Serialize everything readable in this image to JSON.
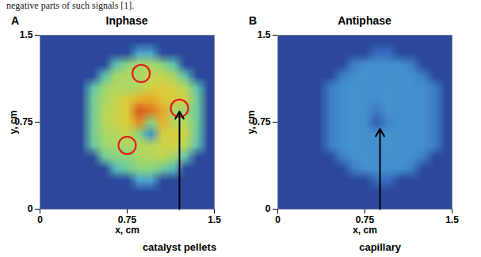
{
  "text_above": "negative parts of such signals [1].",
  "chart_data": [
    {
      "type": "heatmap",
      "label": "A",
      "title": "Inphase",
      "xlabel": "x, cm",
      "ylabel": "y, cm",
      "xlim": [
        0,
        1.5
      ],
      "ylim": [
        0,
        1.5
      ],
      "xticks": [
        0,
        0.75,
        1.5
      ],
      "yticks": [
        0,
        0.75,
        1.5
      ],
      "zlim": [
        0,
        1
      ],
      "cells": [
        [
          0.12,
          0.12,
          0.12,
          0.12,
          0.12,
          0.12,
          0.12,
          0.12,
          0.12,
          0.12,
          0.12,
          0.12,
          0.12,
          0.12,
          0.12
        ],
        [
          0.12,
          0.12,
          0.12,
          0.12,
          0.12,
          0.12,
          0.12,
          0.12,
          0.35,
          0.35,
          0.12,
          0.12,
          0.12,
          0.12,
          0.12
        ],
        [
          0.12,
          0.12,
          0.12,
          0.12,
          0.12,
          0.12,
          0.45,
          0.55,
          0.6,
          0.6,
          0.55,
          0.45,
          0.12,
          0.12,
          0.12
        ],
        [
          0.12,
          0.12,
          0.12,
          0.12,
          0.12,
          0.45,
          0.6,
          0.62,
          0.6,
          0.65,
          0.65,
          0.6,
          0.45,
          0.12,
          0.12
        ],
        [
          0.12,
          0.12,
          0.12,
          0.12,
          0.45,
          0.58,
          0.62,
          0.6,
          0.62,
          0.68,
          0.7,
          0.68,
          0.62,
          0.45,
          0.12
        ],
        [
          0.12,
          0.12,
          0.12,
          0.12,
          0.5,
          0.6,
          0.65,
          0.7,
          0.78,
          0.8,
          0.72,
          0.7,
          0.68,
          0.5,
          0.12
        ],
        [
          0.12,
          0.12,
          0.12,
          0.12,
          0.5,
          0.62,
          0.66,
          0.72,
          0.92,
          0.88,
          0.8,
          0.6,
          0.58,
          0.5,
          0.12
        ],
        [
          0.12,
          0.12,
          0.12,
          0.12,
          0.5,
          0.62,
          0.66,
          0.7,
          0.85,
          0.55,
          0.78,
          0.62,
          0.62,
          0.5,
          0.12
        ],
        [
          0.12,
          0.12,
          0.12,
          0.12,
          0.5,
          0.6,
          0.62,
          0.66,
          0.55,
          0.3,
          0.68,
          0.7,
          0.66,
          0.48,
          0.12
        ],
        [
          0.12,
          0.12,
          0.12,
          0.12,
          0.48,
          0.58,
          0.6,
          0.6,
          0.62,
          0.62,
          0.66,
          0.68,
          0.62,
          0.45,
          0.12
        ],
        [
          0.12,
          0.12,
          0.12,
          0.12,
          0.12,
          0.5,
          0.55,
          0.55,
          0.6,
          0.62,
          0.64,
          0.58,
          0.45,
          0.12,
          0.12
        ],
        [
          0.12,
          0.12,
          0.12,
          0.12,
          0.12,
          0.12,
          0.42,
          0.5,
          0.55,
          0.55,
          0.5,
          0.42,
          0.12,
          0.12,
          0.12
        ],
        [
          0.12,
          0.12,
          0.12,
          0.12,
          0.12,
          0.12,
          0.12,
          0.12,
          0.35,
          0.35,
          0.12,
          0.12,
          0.12,
          0.12,
          0.12
        ],
        [
          0.12,
          0.12,
          0.12,
          0.12,
          0.12,
          0.12,
          0.12,
          0.12,
          0.12,
          0.12,
          0.12,
          0.12,
          0.12,
          0.12,
          0.12
        ],
        [
          0.12,
          0.12,
          0.12,
          0.12,
          0.12,
          0.12,
          0.12,
          0.12,
          0.12,
          0.12,
          0.12,
          0.12,
          0.12,
          0.12,
          0.12
        ]
      ],
      "marker": "circle",
      "markers": [
        {
          "x": 0.87,
          "y": 1.17
        },
        {
          "x": 1.2,
          "y": 0.87
        },
        {
          "x": 0.75,
          "y": 0.55
        }
      ],
      "annotations": [
        {
          "text": "catalyst pellets",
          "x": 1.2,
          "y": 0.87
        }
      ]
    },
    {
      "type": "heatmap",
      "label": "B",
      "title": "Antiphase",
      "xlabel": "x, cm",
      "ylabel": "y, cm",
      "xlim": [
        0,
        1.5
      ],
      "ylim": [
        0,
        1.5
      ],
      "xticks": [
        0,
        0.75,
        1.5
      ],
      "yticks": [
        0,
        0.75,
        1.5
      ],
      "zlim": [
        0,
        1
      ],
      "cells": [
        [
          0.12,
          0.12,
          0.12,
          0.12,
          0.12,
          0.12,
          0.12,
          0.12,
          0.12,
          0.12,
          0.12,
          0.12,
          0.12,
          0.12,
          0.12
        ],
        [
          0.12,
          0.12,
          0.12,
          0.12,
          0.12,
          0.12,
          0.12,
          0.12,
          0.22,
          0.22,
          0.12,
          0.12,
          0.12,
          0.12,
          0.12
        ],
        [
          0.12,
          0.12,
          0.12,
          0.12,
          0.12,
          0.12,
          0.26,
          0.3,
          0.3,
          0.3,
          0.3,
          0.26,
          0.12,
          0.12,
          0.12
        ],
        [
          0.12,
          0.12,
          0.12,
          0.12,
          0.12,
          0.26,
          0.3,
          0.31,
          0.3,
          0.3,
          0.31,
          0.3,
          0.26,
          0.12,
          0.12
        ],
        [
          0.12,
          0.12,
          0.12,
          0.12,
          0.26,
          0.3,
          0.31,
          0.3,
          0.3,
          0.31,
          0.3,
          0.3,
          0.3,
          0.26,
          0.12
        ],
        [
          0.12,
          0.12,
          0.12,
          0.12,
          0.26,
          0.3,
          0.31,
          0.3,
          0.3,
          0.31,
          0.3,
          0.3,
          0.3,
          0.26,
          0.12
        ],
        [
          0.12,
          0.12,
          0.12,
          0.12,
          0.26,
          0.3,
          0.31,
          0.3,
          0.25,
          0.31,
          0.3,
          0.3,
          0.3,
          0.26,
          0.12
        ],
        [
          0.12,
          0.12,
          0.12,
          0.12,
          0.26,
          0.3,
          0.31,
          0.3,
          0.18,
          0.28,
          0.3,
          0.3,
          0.3,
          0.26,
          0.12
        ],
        [
          0.12,
          0.12,
          0.12,
          0.12,
          0.26,
          0.3,
          0.31,
          0.3,
          0.3,
          0.31,
          0.3,
          0.3,
          0.3,
          0.26,
          0.12
        ],
        [
          0.12,
          0.12,
          0.12,
          0.12,
          0.26,
          0.3,
          0.31,
          0.3,
          0.3,
          0.31,
          0.3,
          0.3,
          0.3,
          0.26,
          0.12
        ],
        [
          0.12,
          0.12,
          0.12,
          0.12,
          0.12,
          0.26,
          0.3,
          0.31,
          0.3,
          0.3,
          0.31,
          0.3,
          0.26,
          0.12,
          0.12
        ],
        [
          0.12,
          0.12,
          0.12,
          0.12,
          0.12,
          0.12,
          0.26,
          0.3,
          0.3,
          0.3,
          0.3,
          0.26,
          0.12,
          0.12,
          0.12
        ],
        [
          0.12,
          0.12,
          0.12,
          0.12,
          0.12,
          0.12,
          0.12,
          0.12,
          0.22,
          0.22,
          0.12,
          0.12,
          0.12,
          0.12,
          0.12
        ],
        [
          0.12,
          0.12,
          0.12,
          0.12,
          0.12,
          0.12,
          0.12,
          0.12,
          0.12,
          0.12,
          0.12,
          0.12,
          0.12,
          0.12,
          0.12
        ],
        [
          0.12,
          0.12,
          0.12,
          0.12,
          0.12,
          0.12,
          0.12,
          0.12,
          0.12,
          0.12,
          0.12,
          0.12,
          0.12,
          0.12,
          0.12
        ]
      ],
      "annotations": [
        {
          "text": "capillary",
          "x": 0.88,
          "y": 0.72
        }
      ]
    }
  ]
}
